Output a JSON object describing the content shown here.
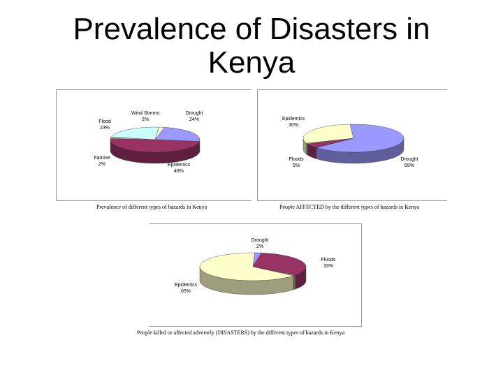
{
  "slide": {
    "title_line1": "Prevalence of Disasters in",
    "title_line2": "Kenya"
  },
  "chart_data": [
    {
      "type": "pie",
      "title": "Prevalence of different types of hazards in Kenya",
      "slices": [
        {
          "label": "Drought",
          "value": 24,
          "value_label": "24%",
          "color": "#9999ff"
        },
        {
          "label": "Epidemics",
          "value": 49,
          "value_label": "49%",
          "color": "#993366"
        },
        {
          "label": "Famine",
          "value": 2,
          "value_label": "2%",
          "color": "#c0c0a0"
        },
        {
          "label": "Flood",
          "value": 23,
          "value_label": "23%",
          "color": "#ccffff"
        },
        {
          "label": "Wind Storms",
          "value": 2,
          "value_label": "2%",
          "color": "#ffffcc"
        }
      ]
    },
    {
      "type": "pie",
      "title": "People AFFECTED by the different types of hazards in Kenya",
      "slices": [
        {
          "label": "Drought",
          "value": 65,
          "value_label": "65%",
          "color": "#9999ff"
        },
        {
          "label": "Floods",
          "value": 5,
          "value_label": "5%",
          "color": "#993366"
        },
        {
          "label": "",
          "value": 1,
          "value_label": "",
          "color": "#a0a080"
        },
        {
          "label": "Epidemics",
          "value": 30,
          "value_label": "30%",
          "color": "#ffffcc"
        }
      ]
    },
    {
      "type": "pie",
      "title": "People killed or affected adversely (DISASTERS) by the different types of hazards in Kenya",
      "slices": [
        {
          "label": "Drought",
          "value": 2,
          "value_label": "2%",
          "color": "#9999ff"
        },
        {
          "label": "Floods",
          "value": 33,
          "value_label": "33%",
          "color": "#993366"
        },
        {
          "label": "",
          "value": 1,
          "value_label": "",
          "color": "#a0a080"
        },
        {
          "label": "Epidemics",
          "value": 65,
          "value_label": "65%",
          "color": "#ffffcc"
        }
      ]
    }
  ]
}
